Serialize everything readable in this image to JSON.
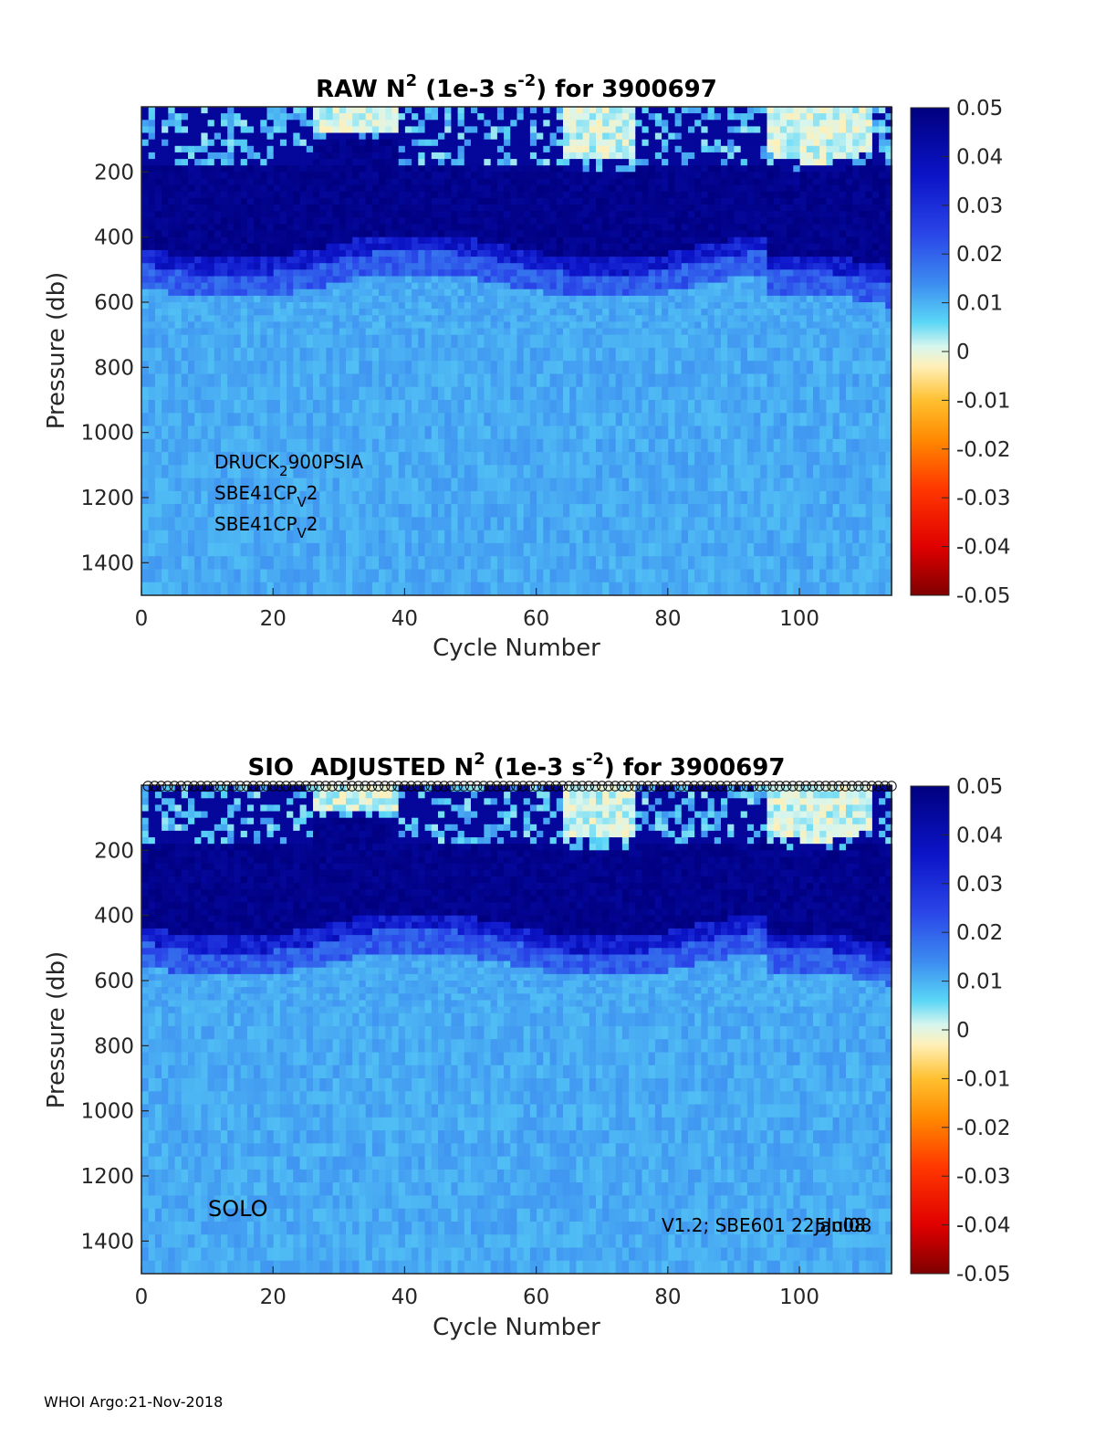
{
  "chart_data": [
    {
      "type": "heatmap",
      "title": {
        "main": "RAW N",
        "sup1": "2",
        "mid": " (1e-3 s",
        "sup2": "-2",
        "end": ") for 3900697"
      },
      "xlabel": "Cycle Number",
      "ylabel": "Pressure (db)",
      "xlim": [
        0,
        114
      ],
      "ylim": [
        0,
        1500
      ],
      "y_reversed": true,
      "xticks": [
        "0",
        "20",
        "40",
        "60",
        "80",
        "100"
      ],
      "yticks": [
        "200",
        "400",
        "600",
        "800",
        "1000",
        "1200",
        "1400"
      ],
      "colorbar": {
        "clim": [
          -0.05,
          0.05
        ],
        "ticks": [
          "0.05",
          "0.04",
          "0.03",
          "0.02",
          "0.01",
          "0",
          "-0.01",
          "-0.02",
          "-0.03",
          "-0.04",
          "-0.05"
        ],
        "colormap": "jet-like diverging"
      },
      "annotations": [
        {
          "base": "DRUCK",
          "sub": "2",
          "rest": "900PSIA"
        },
        {
          "base": "SBE41CP",
          "sub": "V",
          "rest": "2"
        },
        {
          "base": "SBE41CP",
          "sub": "V",
          "rest": "2"
        }
      ],
      "bands": [
        {
          "p_from": 0,
          "p_to": 180,
          "description": "mixed near-zero / positive, light yellow patches near cycles 28-40, 65-75, 95-112"
        },
        {
          "p_from": 180,
          "p_to": 480,
          "value": 0.05
        },
        {
          "p_from": 480,
          "p_to": 600,
          "value": 0.02
        },
        {
          "p_from": 600,
          "p_to": 1500,
          "value": 0.01
        }
      ]
    },
    {
      "type": "heatmap",
      "title": {
        "main": "SIO  ADJUSTED N",
        "sup1": "2",
        "mid": " (1e-3 s",
        "sup2": "-2",
        "end": ") for 3900697"
      },
      "xlabel": "Cycle Number",
      "ylabel": "Pressure (db)",
      "xlim": [
        0,
        114
      ],
      "ylim": [
        0,
        1500
      ],
      "y_reversed": true,
      "xticks": [
        "0",
        "20",
        "40",
        "60",
        "80",
        "100"
      ],
      "yticks": [
        "200",
        "400",
        "600",
        "800",
        "1000",
        "1200",
        "1400"
      ],
      "colorbar": {
        "clim": [
          -0.05,
          0.05
        ],
        "ticks": [
          "0.05",
          "0.04",
          "0.03",
          "0.02",
          "0.01",
          "0",
          "-0.01",
          "-0.02",
          "-0.03",
          "-0.04",
          "-0.05"
        ],
        "colormap": "jet-like diverging"
      },
      "markers": {
        "shape": "open circle",
        "y": 0,
        "x_from": 1,
        "x_to": 114
      },
      "annotations": {
        "left": "SOLO",
        "right_a": "V1.2; SBE601 22Jan08",
        "right_b": "5Jul08"
      }
    }
  ],
  "footer": "WHOI Argo:21-Nov-2018"
}
